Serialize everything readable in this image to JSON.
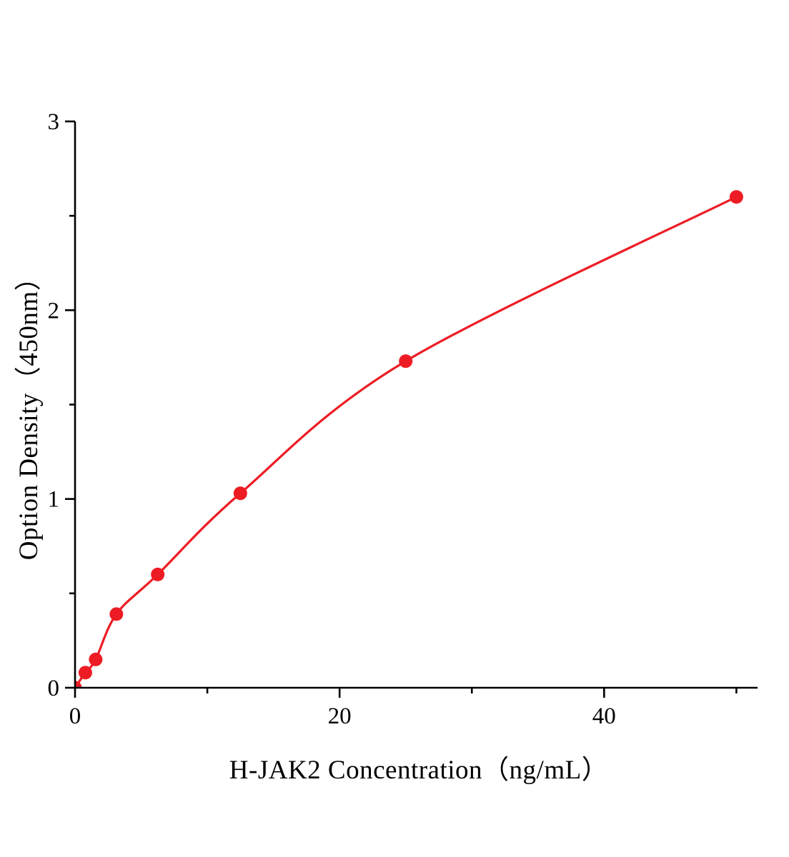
{
  "chart_data": {
    "type": "scatter",
    "title": "",
    "xlabel": "H-JAK2 Concentration（ng/mL）",
    "ylabel": "Option Density（450nm）",
    "x": [
      0,
      0.78,
      1.56,
      3.125,
      6.25,
      12.5,
      25,
      50
    ],
    "y": [
      0,
      0.08,
      0.15,
      0.39,
      0.6,
      1.03,
      1.73,
      2.6
    ],
    "xlim": [
      0,
      51.6
    ],
    "ylim": [
      0,
      3
    ],
    "x_major_ticks": [
      0,
      20,
      40
    ],
    "x_minor_ticks": [
      10,
      30,
      50
    ],
    "y_major_ticks": [
      0,
      1,
      2,
      3
    ],
    "y_minor_ticks": [
      0.5,
      1.5,
      2.5
    ],
    "grid": false,
    "legend": "none",
    "line_color": "#ed1c24",
    "marker_color": "#ed1c24",
    "axis_color": "#000000",
    "background": "#ffffff"
  }
}
